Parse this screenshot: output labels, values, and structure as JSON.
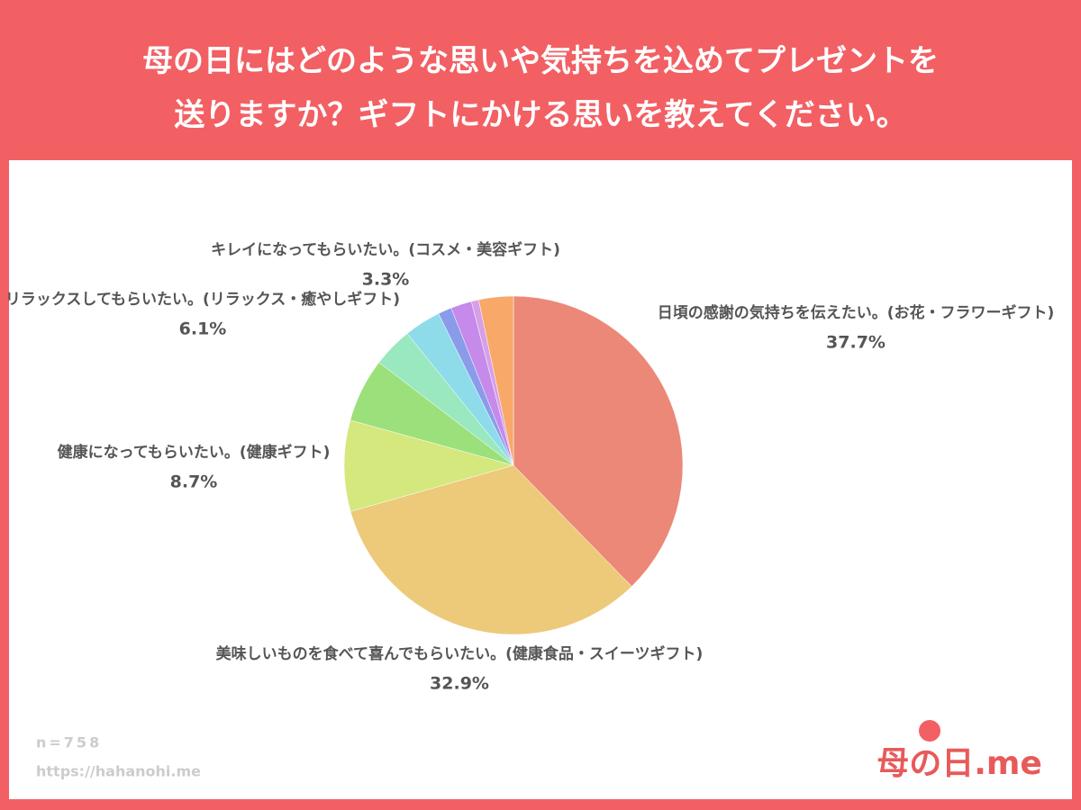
{
  "chart_data": {
    "type": "pie",
    "title": [
      "母の日にはどのような思いや気持ちを込めてプレゼントを",
      "送りますか？ギフトにかける思いを教えてください。"
    ],
    "categories": [
      "日頃の感謝の気持ちを伝えたい。(お花・フラワーギフト)",
      "美味しいものを食べて喜んでもらいたい。(健康食品・スイーツギフト)",
      "健康になってもらいたい。(健康ギフト)",
      "リラックスしてもらいたい。(リラックス・癒やしギフト)",
      null,
      null,
      null,
      null,
      null,
      "キレイになってもらいたい。(コスメ・美容ギフト)"
    ],
    "values": [
      37.7,
      32.9,
      8.7,
      6.1,
      3.8,
      3.5,
      1.3,
      2.0,
      0.7,
      3.3
    ],
    "value_labels": [
      "37.7%",
      "32.9%",
      "8.7%",
      "6.1%",
      null,
      null,
      null,
      null,
      null,
      "3.3%"
    ],
    "colors": [
      "#ec8878",
      "#edc97a",
      "#d4e87e",
      "#9be07a",
      "#9ae8c0",
      "#8edcea",
      "#8a9bea",
      "#c58aea",
      "#d6a0e8",
      "#f8a868"
    ],
    "note": "n=758",
    "source": "https://hahanohi.me",
    "logo": "母の日.me"
  }
}
